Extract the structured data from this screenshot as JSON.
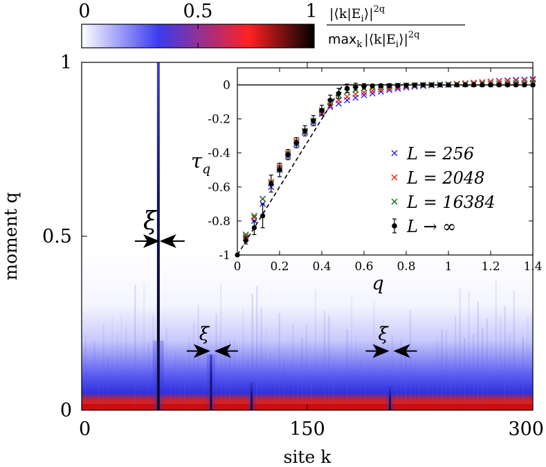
{
  "chart_data": [
    {
      "type": "heatmap",
      "title": "",
      "xlabel": "site k",
      "ylabel": "moment q",
      "xlim": [
        0,
        300
      ],
      "ylim": [
        0,
        1
      ],
      "x_ticks": [
        0,
        150,
        300
      ],
      "x_tick_labels": [
        "0",
        "150",
        "300"
      ],
      "y_ticks": [
        0,
        0.5,
        1
      ],
      "y_tick_labels": [
        "0",
        "0.5",
        "1"
      ],
      "colorbar": {
        "range": [
          0,
          1
        ],
        "ticks": [
          0,
          0.5,
          1
        ],
        "tick_labels": [
          "0",
          "0.5",
          "1"
        ],
        "colors": [
          "#ffffff",
          "#3a3cf0",
          "#ff2222",
          "#000000"
        ],
        "label_numerator": "|⟨k|E",
        "label_numerator_sub": "i",
        "label_numerator_end": "⟩|",
        "label_numerator_exp": "2q",
        "label_denominator_max": "max",
        "label_denominator_max_sub": "k",
        "label_denominator": "|⟨k|E",
        "label_denominator_sub": "i",
        "label_denominator_end": "⟩|",
        "label_denominator_exp": "2q"
      },
      "peaks": [
        {
          "site": 51,
          "height": 1.0
        },
        {
          "site": 86,
          "height": 0.16
        },
        {
          "site": 113,
          "height": 0.08
        },
        {
          "site": 205,
          "height": 0.07
        }
      ],
      "annotations": [
        {
          "text": "ξ",
          "site": 51,
          "q": 0.5,
          "size": "large"
        },
        {
          "text": "ξ",
          "site": 86,
          "q": 0.17,
          "size": "small"
        },
        {
          "text": "ξ",
          "site": 205,
          "q": 0.17,
          "size": "small"
        }
      ]
    },
    {
      "type": "scatter",
      "title": "",
      "xlabel": "q",
      "ylabel": "τ",
      "ylabel_sub": "q",
      "xlim": [
        0,
        1.4
      ],
      "ylim": [
        -1,
        0.1
      ],
      "x_ticks": [
        0,
        0.2,
        0.4,
        0.6,
        0.8,
        1,
        1.2,
        1.4
      ],
      "x_tick_labels": [
        "0",
        "0.2",
        "0.4",
        "0.6",
        "0.8",
        "1",
        "1.2",
        "1.4"
      ],
      "y_ticks": [
        0,
        -0.2,
        -0.4,
        -0.6,
        -0.8,
        -1
      ],
      "y_tick_labels": [
        "0",
        "-0.2",
        "-0.4",
        "-0.6",
        "-0.8",
        "-1"
      ],
      "legend_position": "right",
      "series": [
        {
          "name": "L = 256",
          "color": "#2222ee",
          "marker": "x",
          "x": [
            0.04,
            0.08,
            0.12,
            0.16,
            0.2,
            0.24,
            0.28,
            0.32,
            0.36,
            0.4,
            0.44,
            0.48,
            0.52,
            0.56,
            0.6,
            0.64,
            0.68,
            0.72,
            0.76,
            0.8,
            0.84,
            0.88,
            0.92,
            0.96,
            1.0,
            1.04,
            1.08,
            1.12,
            1.16,
            1.2,
            1.24,
            1.28,
            1.32,
            1.36,
            1.4
          ],
          "y": [
            -0.9,
            -0.8,
            -0.7,
            -0.6,
            -0.5,
            -0.42,
            -0.35,
            -0.28,
            -0.22,
            -0.17,
            -0.13,
            -0.11,
            -0.09,
            -0.075,
            -0.06,
            -0.05,
            -0.04,
            -0.03,
            -0.022,
            -0.015,
            -0.01,
            -0.006,
            -0.003,
            -0.001,
            0.0,
            0.004,
            0.008,
            0.012,
            0.016,
            0.02,
            0.023,
            0.026,
            0.029,
            0.031,
            0.034
          ]
        },
        {
          "name": "L = 2048",
          "color": "#ee2222",
          "marker": "x",
          "x": [
            0.04,
            0.08,
            0.12,
            0.16,
            0.2,
            0.24,
            0.28,
            0.32,
            0.36,
            0.4,
            0.44,
            0.48,
            0.52,
            0.56,
            0.6,
            0.64,
            0.68,
            0.72,
            0.76,
            0.8,
            0.84,
            0.88,
            0.92,
            0.96,
            1.0,
            1.04,
            1.08,
            1.12,
            1.16,
            1.2,
            1.24,
            1.28,
            1.32,
            1.36,
            1.4
          ],
          "y": [
            -0.89,
            -0.78,
            -0.67,
            -0.57,
            -0.48,
            -0.4,
            -0.33,
            -0.27,
            -0.21,
            -0.16,
            -0.12,
            -0.09,
            -0.07,
            -0.055,
            -0.045,
            -0.035,
            -0.027,
            -0.02,
            -0.014,
            -0.009,
            -0.005,
            -0.002,
            0.0,
            0.002,
            0.004,
            0.007,
            0.01,
            0.013,
            0.016,
            0.019,
            0.021,
            0.023,
            0.025,
            0.027,
            0.029
          ]
        },
        {
          "name": "L = 16384",
          "color": "#1e6e1e",
          "marker": "x",
          "x": [
            0.04,
            0.08,
            0.12,
            0.16,
            0.2,
            0.24,
            0.28,
            0.32,
            0.36,
            0.4,
            0.44,
            0.48,
            0.52,
            0.56,
            0.6,
            0.64,
            0.68,
            0.72,
            0.76,
            0.8,
            0.84,
            0.88,
            0.92,
            0.96,
            1.0,
            1.04,
            1.08,
            1.12,
            1.16,
            1.2,
            1.24,
            1.28,
            1.32,
            1.36,
            1.4
          ],
          "y": [
            -0.88,
            -0.77,
            -0.67,
            -0.58,
            -0.49,
            -0.41,
            -0.34,
            -0.27,
            -0.21,
            -0.15,
            -0.1,
            -0.06,
            -0.04,
            -0.03,
            -0.022,
            -0.016,
            -0.011,
            -0.008,
            -0.005,
            -0.003,
            -0.001,
            0.0,
            0.001,
            0.002,
            0.003,
            0.004,
            0.005,
            0.006,
            0.007,
            0.008,
            0.009,
            0.01,
            0.011,
            0.012,
            0.013
          ]
        },
        {
          "name": "L → ∞",
          "color": "#000000",
          "marker": "circle",
          "x": [
            0,
            0.04,
            0.08,
            0.12,
            0.16,
            0.2,
            0.24,
            0.28,
            0.32,
            0.36,
            0.4,
            0.44,
            0.48,
            0.52,
            0.56,
            0.6,
            0.64,
            0.68,
            0.72,
            0.76,
            0.8,
            0.84,
            0.88,
            0.92,
            0.96,
            1.0,
            1.04,
            1.08,
            1.12,
            1.16,
            1.2,
            1.24,
            1.28,
            1.32,
            1.36,
            1.4
          ],
          "y": [
            -1.0,
            -0.915,
            -0.84,
            -0.77,
            -0.58,
            -0.5,
            -0.41,
            -0.34,
            -0.27,
            -0.21,
            -0.15,
            -0.09,
            -0.05,
            -0.02,
            -0.01,
            -0.008,
            -0.006,
            -0.005,
            -0.004,
            -0.003,
            -0.002,
            -0.001,
            0.0,
            0.0,
            0.0,
            0.0,
            0.0,
            0.0,
            0.0,
            0.0,
            0.0,
            0.0,
            0.0,
            0.0,
            0.0,
            0.0
          ],
          "err": [
            0.0,
            0.02,
            0.04,
            0.07,
            0.05,
            0.04,
            0.03,
            0.03,
            0.03,
            0.03,
            0.03,
            0.03,
            0.03,
            0.025,
            0.02,
            0.015,
            0.01,
            0.01,
            0.01,
            0.01,
            0.01,
            0.01,
            0.01,
            0.01,
            0.01,
            0.01,
            0.01,
            0.01,
            0.01,
            0.01,
            0.01,
            0.01,
            0.01,
            0.01,
            0.01,
            0.01
          ]
        }
      ],
      "reference_line": {
        "x": [
          0,
          0.5,
          1.4
        ],
        "y": [
          -1,
          0,
          0
        ],
        "style": "dashed"
      },
      "zero_line": {
        "y": 0
      }
    }
  ]
}
